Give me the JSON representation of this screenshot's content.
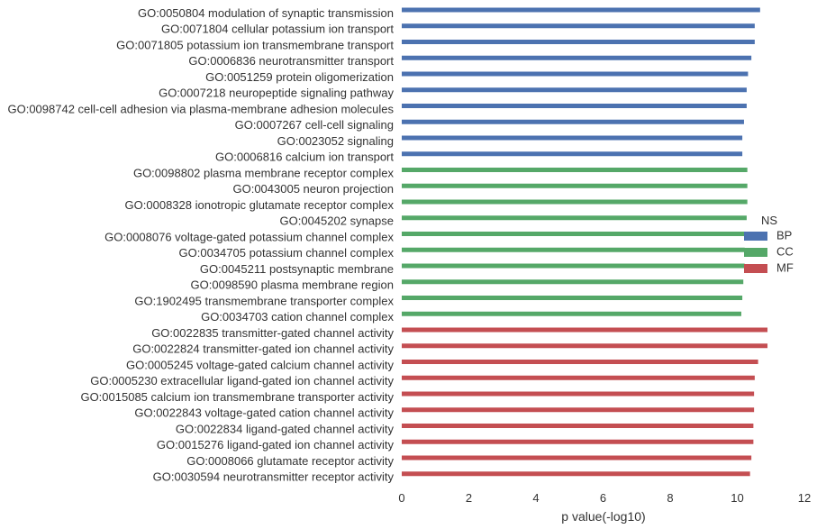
{
  "chart_data": {
    "type": "bar",
    "orientation": "horizontal",
    "xlabel": "p value(-log10)",
    "ylabel": "",
    "xlim": [
      0,
      12
    ],
    "xticks": [
      "0",
      "2",
      "4",
      "6",
      "8",
      "10",
      "12"
    ],
    "grid": false,
    "legend": {
      "title": "NS",
      "placement": "right",
      "entries": [
        {
          "name": "BP",
          "color": "#4c72b0"
        },
        {
          "name": "CC",
          "color": "#55a868"
        },
        {
          "name": "MF",
          "color": "#c44e52"
        }
      ]
    },
    "categories": [
      "GO:0050804 modulation of synaptic transmission",
      "GO:0071804 cellular potassium ion transport",
      "GO:0071805 potassium ion transmembrane transport",
      "GO:0006836 neurotransmitter transport",
      "GO:0051259 protein oligomerization",
      "GO:0007218 neuropeptide signaling pathway",
      "GO:0098742 cell-cell adhesion via plasma-membrane adhesion molecules",
      "GO:0007267 cell-cell signaling",
      "GO:0023052 signaling",
      "GO:0006816 calcium ion transport",
      "GO:0098802 plasma membrane receptor complex",
      "GO:0043005 neuron projection",
      "GO:0008328 ionotropic glutamate receptor complex",
      "GO:0045202 synapse",
      "GO:0008076 voltage-gated potassium channel complex",
      "GO:0034705 potassium channel complex",
      "GO:0045211 postsynaptic membrane",
      "GO:0098590 plasma membrane region",
      "GO:1902495 transmembrane transporter complex",
      "GO:0034703 cation channel complex",
      "GO:0022835 transmitter-gated channel activity",
      "GO:0022824 transmitter-gated ion channel activity",
      "GO:0005245 voltage-gated calcium channel activity",
      "GO:0005230 extracellular ligand-gated ion channel activity",
      "GO:0015085 calcium ion transmembrane transporter activity",
      "GO:0022843 voltage-gated cation channel activity",
      "GO:0022834 ligand-gated channel activity",
      "GO:0015276 ligand-gated ion channel activity",
      "GO:0008066 glutamate receptor activity",
      "GO:0030594 neurotransmitter receptor activity"
    ],
    "groups": [
      "BP",
      "BP",
      "BP",
      "BP",
      "BP",
      "BP",
      "BP",
      "BP",
      "BP",
      "BP",
      "CC",
      "CC",
      "CC",
      "CC",
      "CC",
      "CC",
      "CC",
      "CC",
      "CC",
      "CC",
      "MF",
      "MF",
      "MF",
      "MF",
      "MF",
      "MF",
      "MF",
      "MF",
      "MF",
      "MF"
    ],
    "values": [
      10.68,
      10.52,
      10.52,
      10.42,
      10.32,
      10.28,
      10.28,
      10.2,
      10.15,
      10.15,
      10.3,
      10.3,
      10.3,
      10.28,
      10.28,
      10.22,
      10.22,
      10.18,
      10.15,
      10.12,
      10.9,
      10.9,
      10.62,
      10.52,
      10.5,
      10.5,
      10.48,
      10.48,
      10.42,
      10.38
    ]
  }
}
